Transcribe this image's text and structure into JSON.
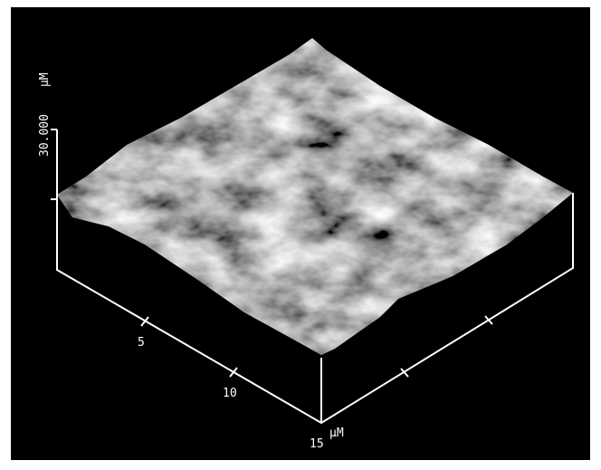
{
  "z_axis": {
    "max_label": "30.000",
    "unit": "µM"
  },
  "xy_axis": {
    "ticks": [
      "5",
      "10",
      "15"
    ],
    "unit": "µM"
  }
}
